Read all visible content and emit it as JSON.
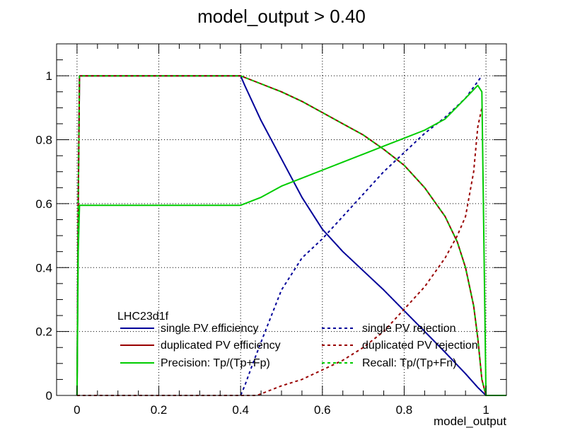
{
  "chart_data": {
    "type": "line",
    "title": "model_output > 0.40",
    "xlabel": "model_output",
    "ylabel": "",
    "xlim": [
      -0.05,
      1.05
    ],
    "ylim": [
      0,
      1.1
    ],
    "xticks": [
      {
        "v": 0,
        "label": "0"
      },
      {
        "v": 0.2,
        "label": "0.2"
      },
      {
        "v": 0.4,
        "label": "0.4"
      },
      {
        "v": 0.6,
        "label": "0.6"
      },
      {
        "v": 0.8,
        "label": "0.8"
      },
      {
        "v": 1,
        "label": "1"
      }
    ],
    "yticks": [
      {
        "v": 0,
        "label": "0"
      },
      {
        "v": 0.2,
        "label": "0.2"
      },
      {
        "v": 0.4,
        "label": "0.4"
      },
      {
        "v": 0.6,
        "label": "0.6"
      },
      {
        "v": 0.8,
        "label": "0.8"
      },
      {
        "v": 1,
        "label": "1"
      }
    ],
    "grid": true,
    "legend": {
      "title": "LHC23d1f",
      "placement": "bottom-left",
      "columns": 2
    },
    "series": [
      {
        "name": "single PV efficiency",
        "color": "#000099",
        "dash": "solid",
        "x": [
          0,
          0.003,
          0.006,
          0.4,
          0.41,
          0.45,
          0.5,
          0.55,
          0.6,
          0.65,
          0.7,
          0.75,
          0.8,
          0.85,
          0.9,
          0.95,
          0.98,
          1.0,
          1.05
        ],
        "y": [
          0,
          0.6,
          1.0,
          1.0,
          0.97,
          0.86,
          0.74,
          0.62,
          0.52,
          0.45,
          0.39,
          0.33,
          0.265,
          0.2,
          0.135,
          0.068,
          0.025,
          0,
          0
        ]
      },
      {
        "name": "single PV rejection",
        "color": "#000099",
        "dash": "dashed",
        "x": [
          0,
          0.4,
          0.41,
          0.43,
          0.46,
          0.5,
          0.55,
          0.6,
          0.65,
          0.7,
          0.75,
          0.8,
          0.85,
          0.9,
          0.95,
          0.99
        ],
        "y": [
          0,
          0,
          0.03,
          0.1,
          0.2,
          0.33,
          0.43,
          0.49,
          0.56,
          0.63,
          0.7,
          0.76,
          0.82,
          0.87,
          0.93,
          1.0
        ]
      },
      {
        "name": "duplicated PV efficiency",
        "color": "#990000",
        "dash": "solid",
        "x": [
          0,
          0.003,
          0.006,
          0.4,
          0.45,
          0.5,
          0.55,
          0.6,
          0.65,
          0.7,
          0.75,
          0.8,
          0.85,
          0.9,
          0.93,
          0.95,
          0.97,
          0.98,
          0.99,
          1.0,
          1.05
        ],
        "y": [
          0,
          0.6,
          1.0,
          1.0,
          0.975,
          0.95,
          0.92,
          0.885,
          0.85,
          0.815,
          0.77,
          0.72,
          0.65,
          0.56,
          0.48,
          0.4,
          0.28,
          0.18,
          0.05,
          0,
          0
        ]
      },
      {
        "name": "duplicated PV rejection",
        "color": "#990000",
        "dash": "dashed",
        "x": [
          0,
          0.44,
          0.46,
          0.5,
          0.55,
          0.6,
          0.65,
          0.7,
          0.75,
          0.8,
          0.85,
          0.9,
          0.93,
          0.95,
          0.97,
          0.98,
          0.99
        ],
        "y": [
          0,
          0,
          0.01,
          0.03,
          0.05,
          0.08,
          0.11,
          0.15,
          0.2,
          0.27,
          0.34,
          0.43,
          0.5,
          0.56,
          0.7,
          0.84,
          0.9
        ]
      },
      {
        "name": "Precision: Tp/(Tp+Fp)",
        "color": "#00cc00",
        "dash": "solid",
        "x": [
          0,
          0.003,
          0.006,
          0.4,
          0.45,
          0.5,
          0.55,
          0.6,
          0.65,
          0.7,
          0.75,
          0.8,
          0.85,
          0.9,
          0.95,
          0.98,
          0.99,
          1.0,
          1.05
        ],
        "y": [
          0,
          0.45,
          0.595,
          0.595,
          0.62,
          0.655,
          0.68,
          0.705,
          0.73,
          0.755,
          0.78,
          0.805,
          0.83,
          0.865,
          0.93,
          0.97,
          0.95,
          0,
          0
        ]
      },
      {
        "name": "Recall: Tp/(Tp+Fn)",
        "color": "#00cc00",
        "dash": "dashed",
        "x": [
          0,
          0.003,
          0.006,
          0.4,
          0.45,
          0.5,
          0.55,
          0.6,
          0.65,
          0.7,
          0.75,
          0.8,
          0.85,
          0.9,
          0.93,
          0.95,
          0.97,
          0.98,
          0.99,
          1.0,
          1.05
        ],
        "y": [
          0,
          0.6,
          1.0,
          1.0,
          0.975,
          0.95,
          0.92,
          0.885,
          0.85,
          0.815,
          0.77,
          0.72,
          0.65,
          0.56,
          0.48,
          0.4,
          0.28,
          0.18,
          0.05,
          0,
          0
        ]
      }
    ]
  }
}
